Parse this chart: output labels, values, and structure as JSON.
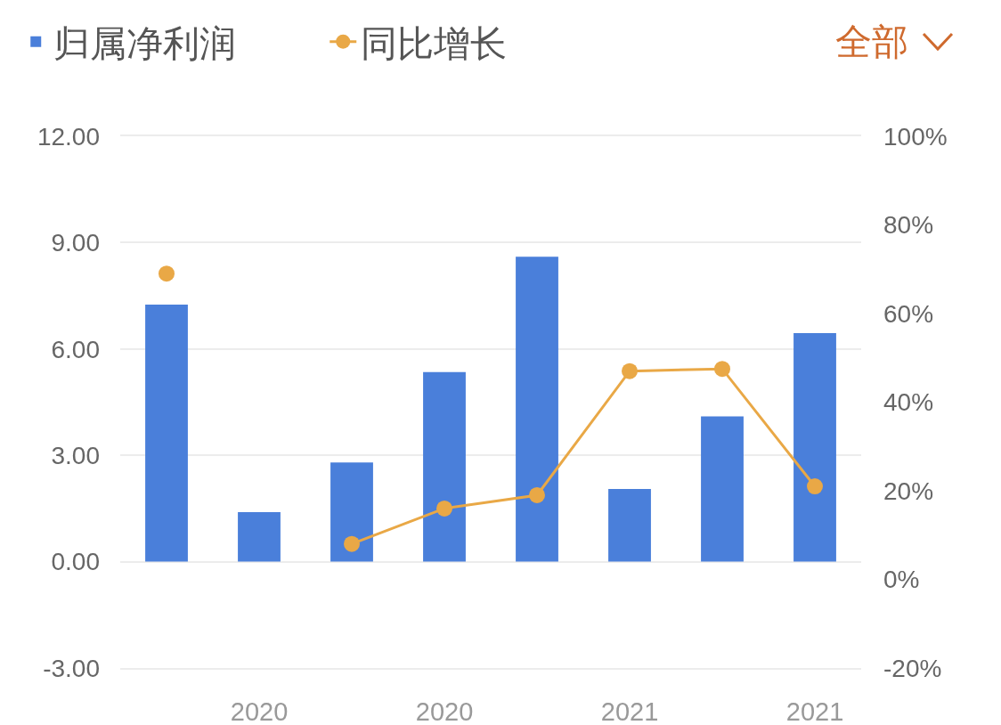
{
  "chart_data": {
    "type": "bar",
    "categories": [
      null,
      "2020",
      null,
      "2020",
      null,
      "2021",
      null,
      "2021"
    ],
    "series": [
      {
        "name": "归属净利润",
        "color": "#4a7fda",
        "values": [
          7.25,
          1.4,
          2.8,
          5.35,
          8.6,
          2.05,
          4.1,
          6.45
        ]
      },
      {
        "name": "同比增长",
        "type": "line",
        "axis": "y2",
        "color": "#e9a846",
        "values": [
          69,
          null,
          8,
          16,
          19,
          47,
          47.5,
          21
        ]
      }
    ],
    "ylim": [
      -3,
      12
    ],
    "yticks": [
      {
        "value": -3,
        "label": "-3.00"
      },
      {
        "value": 0,
        "label": "0.00"
      },
      {
        "value": 3,
        "label": "3.00"
      },
      {
        "value": 6,
        "label": "6.00"
      },
      {
        "value": 9,
        "label": "9.00"
      },
      {
        "value": 12,
        "label": "12.00"
      }
    ],
    "y2lim": [
      -20,
      100
    ],
    "y2ticks": [
      {
        "value": -20,
        "label": "-20%"
      },
      {
        "value": 0,
        "label": "0%"
      },
      {
        "value": 20,
        "label": "20%"
      },
      {
        "value": 40,
        "label": "40%"
      },
      {
        "value": 60,
        "label": "60%"
      },
      {
        "value": 80,
        "label": "80%"
      },
      {
        "value": 100,
        "label": "100%"
      }
    ],
    "grid": "y",
    "legend": "top left",
    "marker": "circle",
    "line_style": "solid",
    "annotations": [
      "全部"
    ]
  }
}
